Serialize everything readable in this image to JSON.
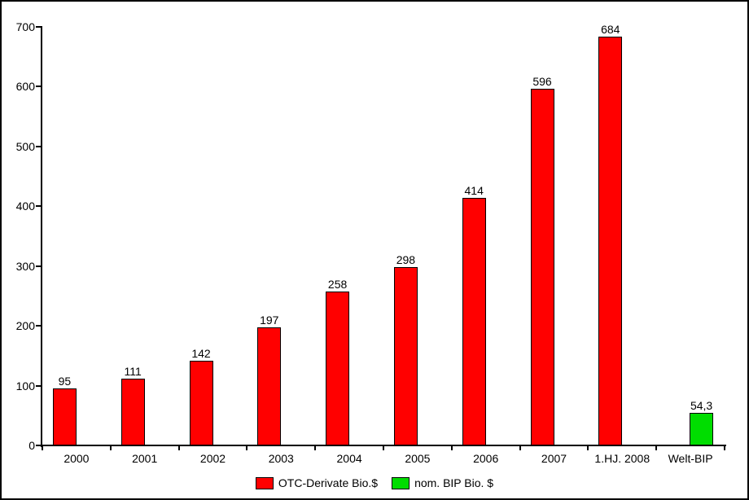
{
  "chart_data": {
    "type": "bar",
    "title": "",
    "xlabel": "",
    "ylabel": "",
    "categories": [
      "2000",
      "2001",
      "2002",
      "2003",
      "2004",
      "2005",
      "2006",
      "2007",
      "1.HJ. 2008",
      "Welt-BIP"
    ],
    "series": [
      {
        "name": "OTC-Derivate Bio.$",
        "color": "#ff0000",
        "values": [
          95,
          111,
          142,
          197,
          258,
          298,
          414,
          596,
          684,
          null
        ],
        "value_labels": [
          "95",
          "111",
          "142",
          "197",
          "258",
          "298",
          "414",
          "596",
          "684",
          ""
        ]
      },
      {
        "name": "nom. BIP Bio. $",
        "color": "#00dd00",
        "values": [
          null,
          null,
          null,
          null,
          null,
          null,
          null,
          null,
          null,
          54.3
        ],
        "value_labels": [
          "",
          "",
          "",
          "",
          "",
          "",
          "",
          "",
          "",
          "54,3"
        ]
      }
    ],
    "ylim": [
      0,
      700
    ],
    "ytick_step": 100,
    "ytick_labels": [
      "0",
      "100",
      "200",
      "300",
      "400",
      "500",
      "600",
      "700"
    ],
    "grid": false,
    "legend_position": "bottom",
    "axis_color": "#000000",
    "bar_border_color": "#000000",
    "text_color": "#000000",
    "background": "#ffffff"
  }
}
